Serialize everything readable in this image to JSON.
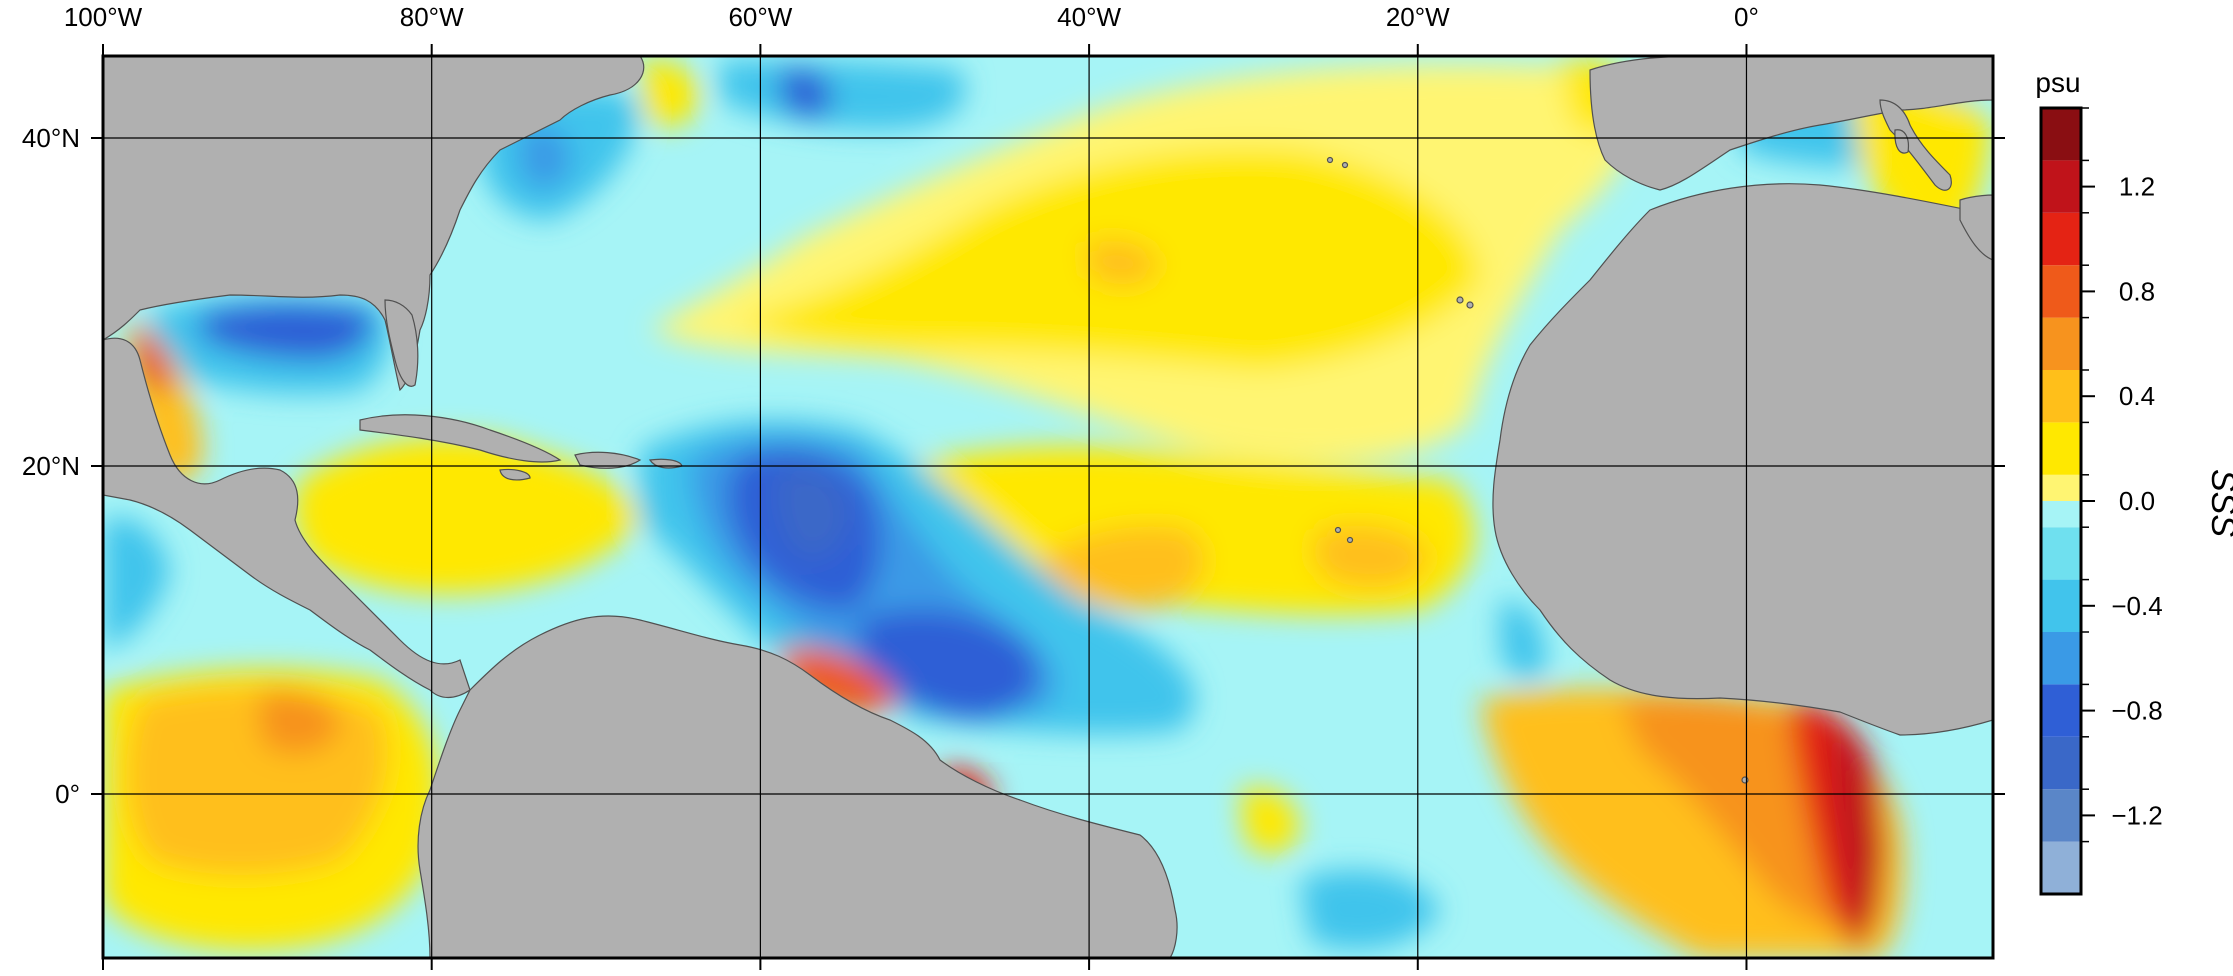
{
  "map": {
    "lon_ticks": [
      {
        "lon": -100,
        "label": "100°W"
      },
      {
        "lon": -80,
        "label": "80°W"
      },
      {
        "lon": -60,
        "label": "60°W"
      },
      {
        "lon": -40,
        "label": "40°W"
      },
      {
        "lon": -20,
        "label": "20°W"
      },
      {
        "lon": 0,
        "label": "0°"
      }
    ],
    "lat_ticks": [
      {
        "lat": 40,
        "label": "40°N"
      },
      {
        "lat": 20,
        "label": "20°N"
      },
      {
        "lat": 0,
        "label": "0°"
      }
    ],
    "extent": {
      "lon_min": -100,
      "lon_max": 15,
      "lat_min": -10,
      "lat_max": 45
    },
    "colors": {
      "land": "#b0b0b0",
      "land_outline": "#505050",
      "background": "#ffffff"
    }
  },
  "colorbar": {
    "unit": "psu",
    "variable": "SSS",
    "range": [
      -1.5,
      1.5
    ],
    "ticks": [
      {
        "value": 1.2,
        "label": "1.2"
      },
      {
        "value": 0.8,
        "label": "0.8"
      },
      {
        "value": 0.4,
        "label": "0.4"
      },
      {
        "value": 0.0,
        "label": "0.0"
      },
      {
        "value": -0.4,
        "label": "−0.4"
      },
      {
        "value": -0.8,
        "label": "−0.8"
      },
      {
        "value": -1.2,
        "label": "−1.2"
      }
    ],
    "bins": [
      {
        "from": -1.5,
        "to": -1.3,
        "color": "#8fb0d8"
      },
      {
        "from": -1.3,
        "to": -1.1,
        "color": "#5a86c8"
      },
      {
        "from": -1.1,
        "to": -0.9,
        "color": "#3a68c8"
      },
      {
        "from": -0.9,
        "to": -0.7,
        "color": "#2f5fd6"
      },
      {
        "from": -0.7,
        "to": -0.5,
        "color": "#3a9ae6"
      },
      {
        "from": -0.5,
        "to": -0.3,
        "color": "#41c4ec"
      },
      {
        "from": -0.3,
        "to": -0.1,
        "color": "#6fe0ef"
      },
      {
        "from": -0.1,
        "to": 0.0,
        "color": "#a6f4f6"
      },
      {
        "from": 0.0,
        "to": 0.1,
        "color": "#fff572"
      },
      {
        "from": 0.1,
        "to": 0.3,
        "color": "#ffe800"
      },
      {
        "from": 0.3,
        "to": 0.5,
        "color": "#ffbf1a"
      },
      {
        "from": 0.5,
        "to": 0.7,
        "color": "#f7931e"
      },
      {
        "from": 0.7,
        "to": 0.9,
        "color": "#ef5a1a"
      },
      {
        "from": 0.9,
        "to": 1.1,
        "color": "#e42314"
      },
      {
        "from": 1.1,
        "to": 1.3,
        "color": "#c0131a"
      },
      {
        "from": 1.3,
        "to": 1.5,
        "color": "#8a0e12"
      }
    ]
  }
}
